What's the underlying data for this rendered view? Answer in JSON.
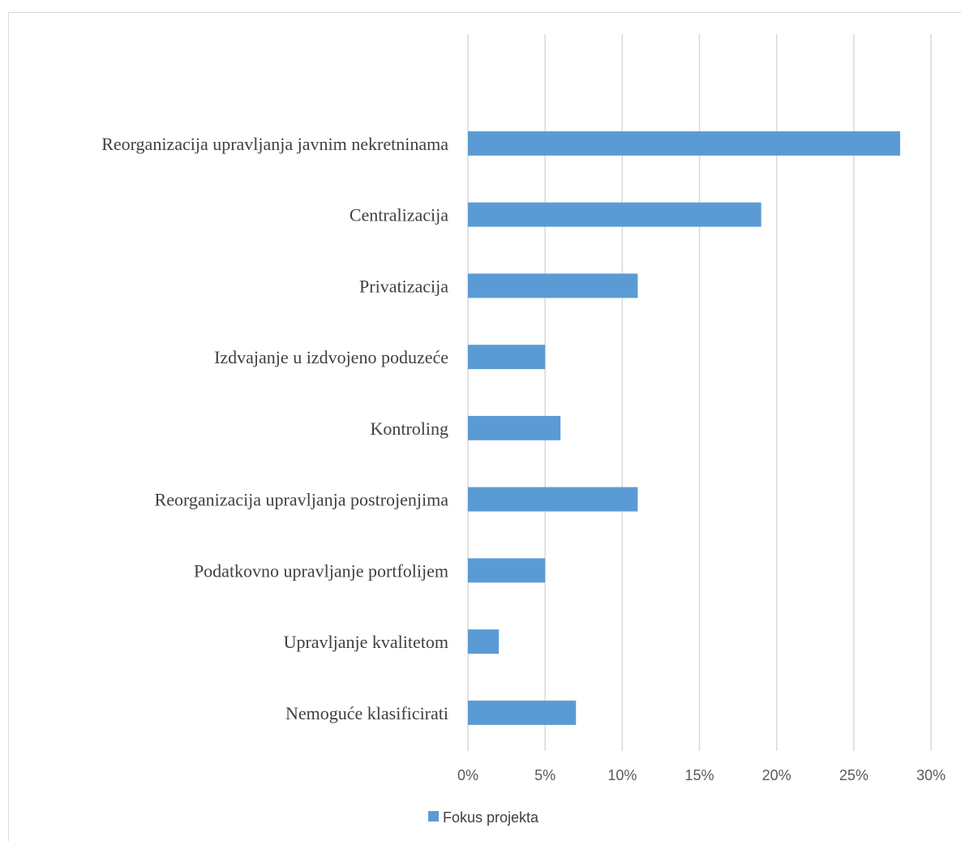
{
  "chart_data": {
    "type": "bar",
    "orientation": "horizontal",
    "title": "",
    "xlabel": "",
    "ylabel": "",
    "xlim": [
      0,
      0.3
    ],
    "x_ticks": [
      0,
      0.05,
      0.1,
      0.15,
      0.2,
      0.25,
      0.3
    ],
    "x_tick_labels": [
      "0%",
      "5%",
      "10%",
      "15%",
      "20%",
      "25%",
      "30%"
    ],
    "categories": [
      "Reorganizacija upravljanja javnim nekretninama",
      "Centralizacija",
      "Privatizacija",
      "Izdvajanje u izdvojeno poduzeće",
      "Kontroling",
      "Reorganizacija upravljanja postrojenjima",
      "Podatkovno upravljanje portfolijem",
      "Upravljanje kvalitetom",
      "Nemoguće klasificirati"
    ],
    "series": [
      {
        "name": "Fokus projekta",
        "color": "#5b9bd5",
        "values": [
          0.28,
          0.19,
          0.11,
          0.05,
          0.06,
          0.11,
          0.05,
          0.02,
          0.07
        ]
      }
    ],
    "grid": "vertical",
    "gridline_color": "#d9d9d9",
    "legend": "bottom"
  }
}
